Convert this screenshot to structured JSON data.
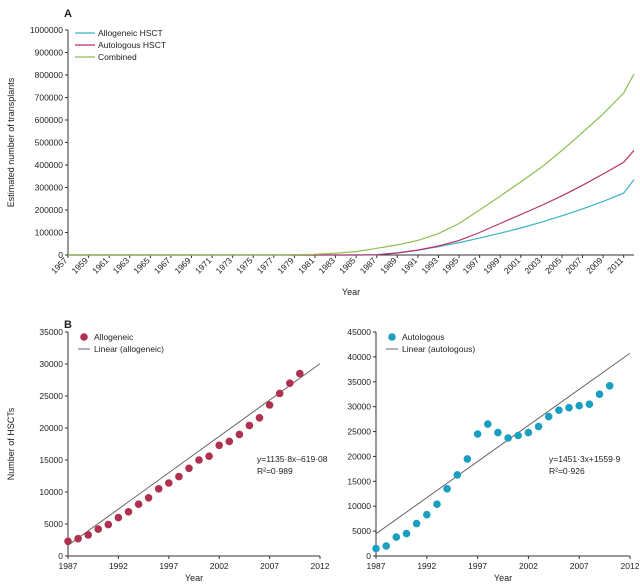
{
  "panels": {
    "a_label": "A",
    "b_label": "B"
  },
  "chart_data": [
    {
      "type": "line",
      "panel": "A",
      "xlabel": "Year",
      "ylabel": "Estimated number of transplants",
      "xlim": [
        1957,
        2012
      ],
      "ylim": [
        0,
        1000000
      ],
      "yticks": [
        0,
        100000,
        200000,
        300000,
        400000,
        500000,
        600000,
        700000,
        800000,
        900000,
        1000000
      ],
      "ytick_labels": [
        "0",
        "100000",
        "200000",
        "300000",
        "400000",
        "500000",
        "600000",
        "700000",
        "800000",
        "900000",
        "1000000"
      ],
      "xticks": [
        1957,
        1959,
        1961,
        1963,
        1965,
        1967,
        1969,
        1971,
        1973,
        1975,
        1977,
        1979,
        1981,
        1983,
        1985,
        1987,
        1989,
        1991,
        1993,
        1995,
        1997,
        1999,
        2001,
        2003,
        2005,
        2007,
        2009,
        2011
      ],
      "xtick_labels": [
        "1957",
        "1959",
        "1961",
        "1963",
        "1965",
        "1967",
        "1969",
        "1971",
        "1973",
        "1975",
        "1977",
        "1979",
        "1981",
        "1983",
        "1985",
        "1987",
        "1989",
        "1991",
        "1993",
        "1995",
        "1997",
        "1999",
        "2001",
        "2003",
        "2005",
        "2007",
        "2009",
        "2011"
      ],
      "legend": "top-left",
      "grid": false,
      "x": [
        1957,
        1970,
        1978,
        1981,
        1983,
        1985,
        1987,
        1989,
        1991,
        1993,
        1995,
        1997,
        1999,
        2001,
        2003,
        2005,
        2007,
        2009,
        2011,
        2012
      ],
      "series": [
        {
          "name": "Allogeneic HSCT",
          "color": "#3ab2c9",
          "values": [
            0,
            0,
            0,
            0,
            0,
            0,
            2000,
            10000,
            22000,
            37000,
            55000,
            75000,
            97000,
            120000,
            146000,
            174000,
            205000,
            238000,
            275000,
            335000
          ]
        },
        {
          "name": "Autologous HSCT",
          "color": "#b8326a",
          "values": [
            0,
            0,
            0,
            0,
            0,
            0,
            1000,
            9000,
            22000,
            40000,
            65000,
            100000,
            140000,
            180000,
            220000,
            263000,
            310000,
            360000,
            412000,
            465000
          ]
        },
        {
          "name": "Combined",
          "color": "#8cbf4f",
          "values": [
            0,
            0,
            500,
            3000,
            8000,
            15000,
            30000,
            45000,
            65000,
            95000,
            140000,
            200000,
            262000,
            325000,
            390000,
            465000,
            545000,
            627000,
            720000,
            805000
          ]
        }
      ]
    },
    {
      "type": "scatter",
      "panel": "B-left",
      "xlabel": "Year",
      "ylabel": "Number of HSCTs",
      "xlim": [
        1987,
        2012
      ],
      "ylim": [
        0,
        35000
      ],
      "xticks": [
        1987,
        1992,
        1997,
        2002,
        2007,
        2012
      ],
      "xtick_labels": [
        "1987",
        "1992",
        "1997",
        "2002",
        "2007",
        "2012"
      ],
      "yticks": [
        0,
        5000,
        10000,
        15000,
        20000,
        25000,
        30000,
        35000
      ],
      "ytick_labels": [
        "0",
        "5000",
        "10000",
        "15000",
        "20000",
        "25000",
        "30000",
        "35000"
      ],
      "legend": "top-left",
      "grid": false,
      "marker_color": "#b0304f",
      "legend_entries": [
        "Allogeneic",
        "Linear (allogeneic)"
      ],
      "equation": "y=1135·8x–619·08",
      "r2": "R²=0·989",
      "fit": {
        "slope": 1135.8,
        "intercept": -619.08,
        "x0": 1986
      },
      "x": [
        1987,
        1988,
        1989,
        1990,
        1991,
        1992,
        1993,
        1994,
        1995,
        1996,
        1997,
        1998,
        1999,
        2000,
        2001,
        2002,
        2003,
        2004,
        2005,
        2006,
        2007,
        2008,
        2009,
        2010
      ],
      "y": [
        2300,
        2700,
        3300,
        4200,
        4900,
        6000,
        6900,
        8100,
        9100,
        10500,
        11400,
        12400,
        13700,
        15000,
        15600,
        17300,
        17900,
        19000,
        20400,
        21600,
        23600,
        25400,
        27000,
        28500
      ]
    },
    {
      "type": "scatter",
      "panel": "B-right",
      "xlabel": "Year",
      "ylabel": "",
      "xlim": [
        1987,
        2012
      ],
      "ylim": [
        0,
        45000
      ],
      "xticks": [
        1987,
        1992,
        1997,
        2002,
        2007,
        2012
      ],
      "xtick_labels": [
        "1987",
        "1992",
        "1997",
        "2002",
        "2007",
        "2012"
      ],
      "yticks": [
        0,
        5000,
        10000,
        15000,
        20000,
        25000,
        30000,
        35000,
        40000,
        45000
      ],
      "ytick_labels": [
        "0",
        "5000",
        "10000",
        "15000",
        "20000",
        "25000",
        "30000",
        "35000",
        "40000",
        "45000"
      ],
      "legend": "top-left",
      "grid": false,
      "marker_color": "#1a9fc0",
      "legend_entries": [
        "Autologous",
        "Linear (autologous)"
      ],
      "equation": "y=1451·3x+1559·9",
      "r2": "R²=0·926",
      "fit": {
        "slope": 1451.3,
        "intercept": 1559.9,
        "x0": 1986
      },
      "x": [
        1987,
        1988,
        1989,
        1990,
        1991,
        1992,
        1993,
        1994,
        1995,
        1996,
        1997,
        1998,
        1999,
        2000,
        2001,
        2002,
        2003,
        2004,
        2005,
        2006,
        2007,
        2008,
        2009,
        2010
      ],
      "y": [
        1500,
        2000,
        3800,
        4500,
        6500,
        8300,
        10400,
        13500,
        16300,
        19500,
        24500,
        26500,
        24800,
        23700,
        24200,
        24800,
        26000,
        28000,
        29300,
        29800,
        30200,
        30500,
        32500,
        34200
      ]
    }
  ]
}
